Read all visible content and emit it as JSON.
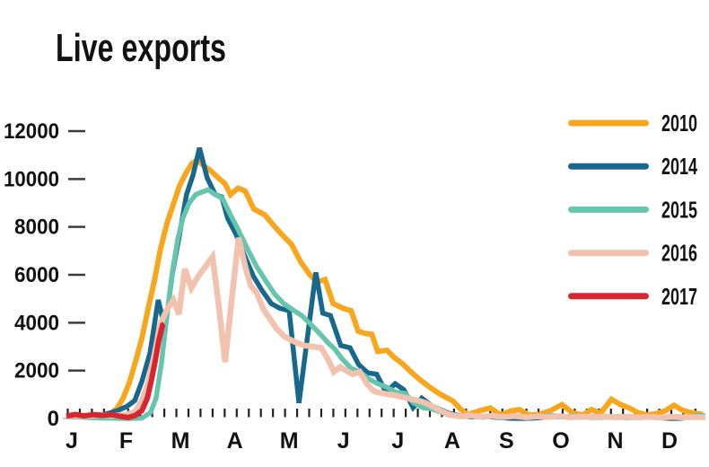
{
  "title": "Live exports",
  "colors": {
    "s2010": "#F8A61E",
    "s2014": "#17688C",
    "s2015": "#65C5AD",
    "s2016": "#F3C2AE",
    "s2017": "#D8252F",
    "text": "#121212",
    "tick": "#222222",
    "ydash": "#3c3c3c",
    "axis_stub": "#c8c8c8",
    "background": "#ffffff"
  },
  "legend": {
    "items": [
      {
        "label": "2010",
        "color": "#F8A61E"
      },
      {
        "label": "2014",
        "color": "#17688C"
      },
      {
        "label": "2015",
        "color": "#65C5AD"
      },
      {
        "label": "2016",
        "color": "#F3C2AE"
      },
      {
        "label": "2017",
        "color": "#D8252F"
      }
    ]
  },
  "chart_data": {
    "type": "line",
    "title": "Live exports",
    "xlabel": "",
    "ylabel": "",
    "x_axis": {
      "tick_labels": [
        "J",
        "F",
        "M",
        "A",
        "M",
        "J",
        "J",
        "A",
        "S",
        "O",
        "N",
        "D"
      ],
      "minor_ticks": "weekly"
    },
    "y_axis": {
      "ticks": [
        0,
        2000,
        4000,
        6000,
        8000,
        10000,
        12000
      ],
      "tick_labels": [
        "0",
        "2000",
        "4000",
        "6000",
        "8000",
        "10000",
        "12000"
      ],
      "range": [
        0,
        12000
      ]
    },
    "grid": "off",
    "legend_position": "right",
    "series": [
      {
        "name": "2010",
        "color": "#F8A61E",
        "points": [
          [
            -0.03,
            150
          ],
          [
            0.26,
            110
          ],
          [
            0.53,
            90
          ],
          [
            0.69,
            160
          ],
          [
            0.83,
            420
          ],
          [
            0.94,
            820
          ],
          [
            1.06,
            1500
          ],
          [
            1.17,
            2350
          ],
          [
            1.29,
            3350
          ],
          [
            1.4,
            4550
          ],
          [
            1.52,
            5750
          ],
          [
            1.63,
            7050
          ],
          [
            1.75,
            8150
          ],
          [
            1.87,
            8950
          ],
          [
            1.98,
            9700
          ],
          [
            2.1,
            10250
          ],
          [
            2.21,
            10650
          ],
          [
            2.31,
            10800
          ],
          [
            2.43,
            10550
          ],
          [
            2.54,
            10380
          ],
          [
            2.68,
            10080
          ],
          [
            2.82,
            9800
          ],
          [
            2.92,
            9350
          ],
          [
            3.06,
            9620
          ],
          [
            3.19,
            9500
          ],
          [
            3.35,
            8750
          ],
          [
            3.55,
            8500
          ],
          [
            3.72,
            8050
          ],
          [
            3.88,
            7650
          ],
          [
            4.05,
            7250
          ],
          [
            4.21,
            6550
          ],
          [
            4.38,
            6000
          ],
          [
            4.52,
            5700
          ],
          [
            4.66,
            5800
          ],
          [
            4.81,
            4800
          ],
          [
            4.99,
            4600
          ],
          [
            5.14,
            4500
          ],
          [
            5.27,
            3650
          ],
          [
            5.4,
            3550
          ],
          [
            5.52,
            3520
          ],
          [
            5.63,
            2800
          ],
          [
            5.8,
            2850
          ],
          [
            5.93,
            2550
          ],
          [
            6.08,
            2300
          ],
          [
            6.24,
            1950
          ],
          [
            6.39,
            1650
          ],
          [
            6.56,
            1350
          ],
          [
            6.72,
            1100
          ],
          [
            6.87,
            900
          ],
          [
            7.02,
            720
          ],
          [
            7.15,
            400
          ],
          [
            7.28,
            160
          ],
          [
            7.5,
            320
          ],
          [
            7.7,
            440
          ],
          [
            7.89,
            150
          ],
          [
            8.08,
            320
          ],
          [
            8.24,
            370
          ],
          [
            8.42,
            140
          ],
          [
            8.6,
            170
          ],
          [
            8.8,
            320
          ],
          [
            9.02,
            580
          ],
          [
            9.21,
            240
          ],
          [
            9.4,
            140
          ],
          [
            9.56,
            370
          ],
          [
            9.73,
            220
          ],
          [
            9.93,
            800
          ],
          [
            10.09,
            590
          ],
          [
            10.26,
            440
          ],
          [
            10.42,
            240
          ],
          [
            10.59,
            150
          ],
          [
            10.75,
            200
          ],
          [
            10.92,
            320
          ],
          [
            11.08,
            550
          ],
          [
            11.25,
            330
          ],
          [
            11.41,
            240
          ],
          [
            11.61,
            170
          ]
        ]
      },
      {
        "name": "2014",
        "color": "#17688C",
        "points": [
          [
            -0.03,
            120
          ],
          [
            0.2,
            90
          ],
          [
            0.4,
            100
          ],
          [
            0.56,
            150
          ],
          [
            0.73,
            250
          ],
          [
            0.86,
            350
          ],
          [
            1.01,
            500
          ],
          [
            1.16,
            750
          ],
          [
            1.29,
            1550
          ],
          [
            1.44,
            2750
          ],
          [
            1.59,
            4950
          ],
          [
            1.72,
            3750
          ],
          [
            1.85,
            6050
          ],
          [
            1.98,
            7650
          ],
          [
            2.11,
            9350
          ],
          [
            2.23,
            10150
          ],
          [
            2.35,
            11300
          ],
          [
            2.49,
            10050
          ],
          [
            2.64,
            9350
          ],
          [
            2.76,
            9250
          ],
          [
            2.87,
            8350
          ],
          [
            3.02,
            7700
          ],
          [
            3.17,
            6850
          ],
          [
            3.34,
            5950
          ],
          [
            3.5,
            5350
          ],
          [
            3.67,
            4800
          ],
          [
            3.83,
            4600
          ],
          [
            4.0,
            4500
          ],
          [
            4.18,
            650
          ],
          [
            4.49,
            6100
          ],
          [
            4.62,
            4400
          ],
          [
            4.76,
            4300
          ],
          [
            4.95,
            3050
          ],
          [
            5.12,
            2950
          ],
          [
            5.28,
            2250
          ],
          [
            5.45,
            1900
          ],
          [
            5.61,
            1850
          ],
          [
            5.78,
            1100
          ],
          [
            5.95,
            1450
          ],
          [
            6.11,
            1200
          ],
          [
            6.28,
            450
          ],
          [
            6.44,
            850
          ],
          [
            6.61,
            550
          ],
          [
            6.77,
            380
          ],
          [
            6.94,
            220
          ],
          [
            7.13,
            120
          ],
          [
            7.37,
            70
          ],
          [
            7.6,
            90
          ],
          [
            7.83,
            50
          ],
          [
            8.06,
            10
          ],
          [
            8.29,
            0
          ],
          [
            8.52,
            20
          ],
          [
            8.75,
            60
          ],
          [
            8.98,
            80
          ],
          [
            9.21,
            40
          ],
          [
            9.45,
            70
          ],
          [
            9.68,
            40
          ],
          [
            9.91,
            80
          ],
          [
            10.14,
            50
          ],
          [
            10.37,
            40
          ],
          [
            10.6,
            70
          ],
          [
            10.83,
            30
          ],
          [
            11.03,
            0
          ],
          [
            11.23,
            10
          ],
          [
            11.43,
            80
          ],
          [
            11.63,
            120
          ]
        ]
      },
      {
        "name": "2015",
        "color": "#65C5AD",
        "points": [
          [
            -0.03,
            80
          ],
          [
            0.26,
            40
          ],
          [
            0.53,
            20
          ],
          [
            0.79,
            10
          ],
          [
            1.06,
            0
          ],
          [
            1.29,
            10
          ],
          [
            1.45,
            260
          ],
          [
            1.55,
            850
          ],
          [
            1.65,
            2300
          ],
          [
            1.75,
            4300
          ],
          [
            1.85,
            6100
          ],
          [
            1.95,
            7500
          ],
          [
            2.05,
            8400
          ],
          [
            2.16,
            9000
          ],
          [
            2.28,
            9350
          ],
          [
            2.39,
            9450
          ],
          [
            2.51,
            9550
          ],
          [
            2.64,
            9350
          ],
          [
            2.77,
            9200
          ],
          [
            2.91,
            8550
          ],
          [
            3.07,
            7850
          ],
          [
            3.24,
            7050
          ],
          [
            3.4,
            6350
          ],
          [
            3.57,
            5750
          ],
          [
            3.73,
            5200
          ],
          [
            3.9,
            4800
          ],
          [
            4.06,
            4550
          ],
          [
            4.23,
            4300
          ],
          [
            4.39,
            3950
          ],
          [
            4.56,
            3550
          ],
          [
            4.72,
            3150
          ],
          [
            4.84,
            2900
          ],
          [
            4.97,
            2500
          ],
          [
            5.14,
            2100
          ],
          [
            5.3,
            1950
          ],
          [
            5.47,
            1650
          ],
          [
            5.63,
            1450
          ],
          [
            5.8,
            1300
          ],
          [
            5.96,
            1100
          ],
          [
            6.13,
            1050
          ],
          [
            6.29,
            650
          ],
          [
            6.46,
            450
          ],
          [
            6.62,
            400
          ],
          [
            6.79,
            270
          ],
          [
            6.95,
            140
          ],
          [
            7.15,
            70
          ],
          [
            7.37,
            120
          ],
          [
            7.58,
            50
          ],
          [
            7.78,
            130
          ],
          [
            7.98,
            70
          ],
          [
            8.19,
            110
          ],
          [
            8.41,
            60
          ],
          [
            8.6,
            90
          ],
          [
            8.84,
            130
          ],
          [
            9.05,
            70
          ],
          [
            9.25,
            110
          ],
          [
            9.45,
            60
          ],
          [
            9.66,
            90
          ],
          [
            9.88,
            50
          ],
          [
            10.07,
            90
          ],
          [
            10.27,
            60
          ],
          [
            10.49,
            40
          ],
          [
            10.7,
            70
          ],
          [
            10.9,
            50
          ],
          [
            11.1,
            90
          ],
          [
            11.31,
            60
          ],
          [
            11.53,
            130
          ],
          [
            11.66,
            110
          ]
        ]
      },
      {
        "name": "2016",
        "color": "#F3C2AE",
        "points": [
          [
            -0.03,
            130
          ],
          [
            0.26,
            100
          ],
          [
            0.53,
            150
          ],
          [
            0.76,
            120
          ],
          [
            0.99,
            160
          ],
          [
            1.16,
            270
          ],
          [
            1.29,
            750
          ],
          [
            1.4,
            1450
          ],
          [
            1.52,
            2650
          ],
          [
            1.63,
            3950
          ],
          [
            1.75,
            4550
          ],
          [
            1.87,
            4950
          ],
          [
            1.97,
            4350
          ],
          [
            2.08,
            6250
          ],
          [
            2.2,
            5450
          ],
          [
            2.33,
            5950
          ],
          [
            2.46,
            6350
          ],
          [
            2.59,
            6750
          ],
          [
            2.71,
            4600
          ],
          [
            2.82,
            2350
          ],
          [
            2.94,
            4900
          ],
          [
            3.07,
            7550
          ],
          [
            3.19,
            6350
          ],
          [
            3.29,
            5550
          ],
          [
            3.4,
            5250
          ],
          [
            3.53,
            4550
          ],
          [
            3.65,
            4150
          ],
          [
            3.77,
            3750
          ],
          [
            3.9,
            3450
          ],
          [
            4.01,
            3300
          ],
          [
            4.15,
            3150
          ],
          [
            4.28,
            3050
          ],
          [
            4.44,
            3000
          ],
          [
            4.59,
            2950
          ],
          [
            4.72,
            2450
          ],
          [
            4.82,
            1950
          ],
          [
            4.94,
            2150
          ],
          [
            5.05,
            2000
          ],
          [
            5.17,
            1850
          ],
          [
            5.3,
            1950
          ],
          [
            5.43,
            1450
          ],
          [
            5.55,
            1150
          ],
          [
            5.66,
            1080
          ],
          [
            5.8,
            1020
          ],
          [
            5.93,
            970
          ],
          [
            6.08,
            900
          ],
          [
            6.21,
            820
          ],
          [
            6.34,
            770
          ],
          [
            6.49,
            670
          ],
          [
            6.62,
            520
          ],
          [
            6.79,
            320
          ],
          [
            6.95,
            170
          ],
          [
            7.12,
            90
          ],
          [
            7.32,
            130
          ],
          [
            7.53,
            70
          ],
          [
            7.74,
            110
          ],
          [
            7.94,
            60
          ],
          [
            8.14,
            100
          ],
          [
            8.36,
            50
          ],
          [
            8.57,
            90
          ],
          [
            8.77,
            60
          ],
          [
            8.97,
            100
          ],
          [
            9.18,
            50
          ],
          [
            9.4,
            80
          ],
          [
            9.59,
            50
          ],
          [
            9.79,
            90
          ],
          [
            10.01,
            50
          ],
          [
            10.22,
            80
          ],
          [
            10.42,
            50
          ],
          [
            10.62,
            70
          ],
          [
            10.83,
            40
          ],
          [
            11.05,
            70
          ],
          [
            11.25,
            40
          ],
          [
            11.44,
            60
          ],
          [
            11.66,
            50
          ]
        ]
      },
      {
        "name": "2017",
        "color": "#D8252F",
        "points": [
          [
            -0.1,
            100
          ],
          [
            0.07,
            170
          ],
          [
            0.23,
            110
          ],
          [
            0.4,
            160
          ],
          [
            0.56,
            130
          ],
          [
            0.73,
            160
          ],
          [
            0.89,
            90
          ],
          [
            1.04,
            40
          ],
          [
            1.17,
            130
          ],
          [
            1.29,
            330
          ],
          [
            1.39,
            850
          ],
          [
            1.47,
            1650
          ],
          [
            1.54,
            2450
          ],
          [
            1.6,
            3250
          ],
          [
            1.67,
            3900
          ],
          [
            1.7,
            3950
          ]
        ]
      }
    ]
  }
}
